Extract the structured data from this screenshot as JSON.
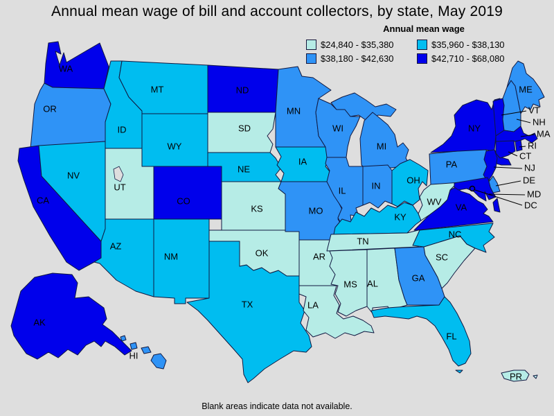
{
  "title": "Annual mean wage of bill and account collectors, by state, May 2019",
  "caption": "Blank areas indicate data not available.",
  "legend": {
    "title": "Annual mean wage",
    "items": [
      {
        "label": "$24,840 - $35,380",
        "color": "#b6ece6"
      },
      {
        "label": "$35,960 - $38,130",
        "color": "#00bdf0"
      },
      {
        "label": "$38,180 - $42,630",
        "color": "#2f93f6"
      },
      {
        "label": "$42,710 - $68,080",
        "color": "#0000eb"
      }
    ]
  },
  "map": {
    "background": "#dedede",
    "border_color": "#101840",
    "label_color": "#000000",
    "states": [
      {
        "abbr": "WA",
        "category": 3
      },
      {
        "abbr": "OR",
        "category": 2
      },
      {
        "abbr": "CA",
        "category": 3
      },
      {
        "abbr": "NV",
        "category": 1
      },
      {
        "abbr": "ID",
        "category": 1
      },
      {
        "abbr": "MT",
        "category": 1
      },
      {
        "abbr": "WY",
        "category": 1
      },
      {
        "abbr": "UT",
        "category": 0
      },
      {
        "abbr": "CO",
        "category": 3
      },
      {
        "abbr": "AZ",
        "category": 1
      },
      {
        "abbr": "NM",
        "category": 1
      },
      {
        "abbr": "TX",
        "category": 1
      },
      {
        "abbr": "OK",
        "category": 0
      },
      {
        "abbr": "KS",
        "category": 0
      },
      {
        "abbr": "NE",
        "category": 1
      },
      {
        "abbr": "SD",
        "category": 0
      },
      {
        "abbr": "ND",
        "category": 3
      },
      {
        "abbr": "MN",
        "category": 2
      },
      {
        "abbr": "IA",
        "category": 1
      },
      {
        "abbr": "MO",
        "category": 2
      },
      {
        "abbr": "AR",
        "category": 0
      },
      {
        "abbr": "LA",
        "category": 0
      },
      {
        "abbr": "WI",
        "category": 2
      },
      {
        "abbr": "IL",
        "category": 2
      },
      {
        "abbr": "MI",
        "category": 2
      },
      {
        "abbr": "IN",
        "category": 2
      },
      {
        "abbr": "OH",
        "category": 1
      },
      {
        "abbr": "KY",
        "category": 1
      },
      {
        "abbr": "TN",
        "category": 0
      },
      {
        "abbr": "MS",
        "category": 0
      },
      {
        "abbr": "AL",
        "category": 0
      },
      {
        "abbr": "GA",
        "category": 2
      },
      {
        "abbr": "FL",
        "category": 1
      },
      {
        "abbr": "SC",
        "category": 0
      },
      {
        "abbr": "NC",
        "category": 1
      },
      {
        "abbr": "VA",
        "category": 3
      },
      {
        "abbr": "WV",
        "category": 0
      },
      {
        "abbr": "PA",
        "category": 2
      },
      {
        "abbr": "NY",
        "category": 3
      },
      {
        "abbr": "NJ",
        "category": 3
      },
      {
        "abbr": "DE",
        "category": 2
      },
      {
        "abbr": "MD",
        "category": 3
      },
      {
        "abbr": "DC",
        "category": 3
      },
      {
        "abbr": "VT",
        "category": 3
      },
      {
        "abbr": "NH",
        "category": 2
      },
      {
        "abbr": "MA",
        "category": 3
      },
      {
        "abbr": "RI",
        "category": 3
      },
      {
        "abbr": "CT",
        "category": 3
      },
      {
        "abbr": "ME",
        "category": 2
      },
      {
        "abbr": "AK",
        "category": 3
      },
      {
        "abbr": "HI",
        "category": 2
      },
      {
        "abbr": "PR",
        "category": 0
      }
    ]
  },
  "chart_data": {
    "type": "choropleth",
    "title": "Annual mean wage of bill and account collectors, by state, May 2019",
    "legend_title": "Annual mean wage",
    "ranges": [
      "$24,840 - $35,380",
      "$35,960 - $38,130",
      "$38,180 - $42,630",
      "$42,710 - $68,080"
    ],
    "states_by_range": {
      "$24,840 - $35,380": [
        "UT",
        "SD",
        "KS",
        "OK",
        "AR",
        "LA",
        "MS",
        "AL",
        "TN",
        "SC",
        "WV",
        "PR"
      ],
      "$35,960 - $38,130": [
        "MT",
        "ID",
        "WY",
        "NV",
        "NE",
        "AZ",
        "NM",
        "TX",
        "IA",
        "OH",
        "KY",
        "NC",
        "FL"
      ],
      "$38,180 - $42,630": [
        "OR",
        "MN",
        "WI",
        "MI",
        "IL",
        "IN",
        "MO",
        "GA",
        "PA",
        "ME",
        "NH",
        "DE",
        "HI"
      ],
      "$42,710 - $68,080": [
        "WA",
        "CA",
        "CO",
        "ND",
        "AK",
        "NY",
        "VT",
        "MA",
        "RI",
        "CT",
        "NJ",
        "MD",
        "DC",
        "VA"
      ]
    },
    "footnote": "Blank areas indicate data not available."
  }
}
